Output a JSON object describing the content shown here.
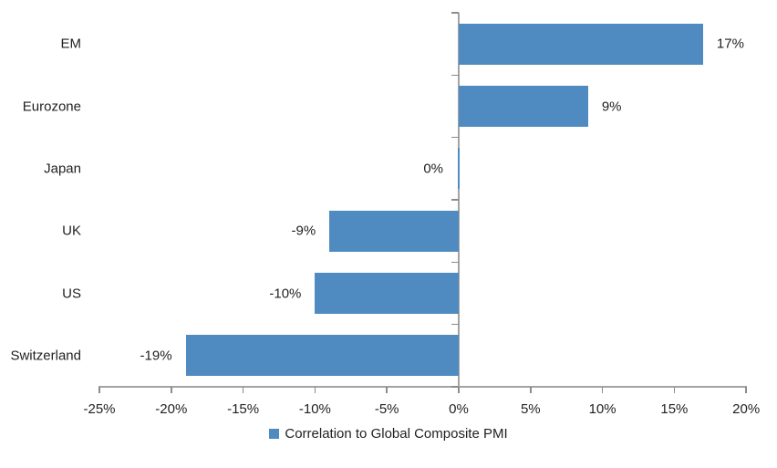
{
  "chart_data": {
    "type": "bar",
    "orientation": "horizontal",
    "title": "",
    "categories": [
      "EM",
      "Eurozone",
      "Japan",
      "UK",
      "US",
      "Switzerland"
    ],
    "values": [
      17,
      9,
      0,
      -9,
      -10,
      -19
    ],
    "value_labels": [
      "17%",
      "9%",
      "0%",
      "-9%",
      "-10%",
      "-19%"
    ],
    "unit": "%",
    "xlabel": "",
    "ylabel": "",
    "xlim": [
      -25,
      20
    ],
    "x_ticks": [
      -25,
      -20,
      -15,
      -10,
      -5,
      0,
      5,
      10,
      15,
      20
    ],
    "x_tick_labels": [
      "-25%",
      "-20%",
      "-15%",
      "-10%",
      "-5%",
      "0%",
      "5%",
      "10%",
      "15%",
      "20%"
    ],
    "legend": "Correlation to Global Composite PMI",
    "legend_position": "bottom-center",
    "grid": false,
    "colors": {
      "bar": "#4F8BC0",
      "axis_line": "#A3A3A3",
      "tick": "#8C8C8C",
      "text": "#1F1F1F",
      "background": "#FFFFFF"
    }
  }
}
